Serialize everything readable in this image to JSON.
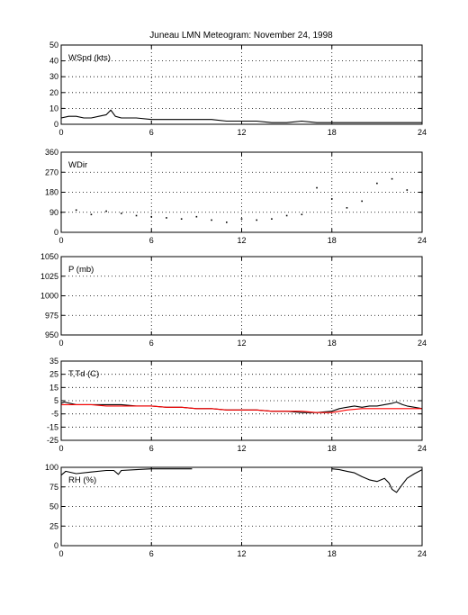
{
  "title": "Juneau LMN Meteogram:  November 24, 1998",
  "chart_data": [
    {
      "type": "line",
      "label": "WSpd (kts)",
      "xlim": [
        0,
        24
      ],
      "xticks": [
        "0",
        "6",
        "12",
        "18",
        "24"
      ],
      "ylim": [
        0,
        50
      ],
      "yticks": [
        "0",
        "10",
        "20",
        "30",
        "40",
        "50"
      ],
      "grid": true,
      "series": [
        {
          "color": "#000000",
          "style": "line",
          "x": [
            0,
            0.5,
            1,
            1.5,
            2,
            2.5,
            3,
            3.3,
            3.6,
            4,
            5,
            6,
            7,
            8,
            9,
            10,
            11,
            12,
            13,
            14,
            15,
            16,
            17,
            18,
            19,
            20,
            21,
            22,
            23,
            24
          ],
          "y": [
            4,
            5,
            5,
            4,
            4,
            5,
            6,
            9,
            5,
            4,
            4,
            3,
            3,
            3,
            3,
            3,
            2,
            2,
            2,
            1,
            1,
            2,
            1,
            1,
            1,
            1,
            1,
            1,
            1,
            1
          ]
        }
      ]
    },
    {
      "type": "scatter",
      "label": "WDir",
      "xlim": [
        0,
        24
      ],
      "xticks": [
        "0",
        "6",
        "12",
        "18",
        "24"
      ],
      "ylim": [
        0,
        360
      ],
      "yticks": [
        "0",
        "90",
        "180",
        "270",
        "360"
      ],
      "grid": true,
      "series": [
        {
          "color": "#000000",
          "style": "dots",
          "x": [
            0,
            1,
            2,
            3,
            4,
            5,
            6,
            7,
            8,
            9,
            10,
            11,
            12,
            13,
            14,
            15,
            16,
            17,
            18,
            19,
            20,
            21,
            22,
            23,
            24
          ],
          "y": [
            90,
            100,
            80,
            95,
            85,
            75,
            70,
            65,
            60,
            70,
            55,
            45,
            60,
            55,
            60,
            75,
            80,
            200,
            150,
            110,
            140,
            220,
            240,
            190,
            180
          ]
        }
      ]
    },
    {
      "type": "line",
      "label": "P (mb)",
      "xlim": [
        0,
        24
      ],
      "xticks": [
        "0",
        "6",
        "12",
        "18",
        "24"
      ],
      "ylim": [
        950,
        1050
      ],
      "yticks": [
        "950",
        "975",
        "1000",
        "1025",
        "1050"
      ],
      "grid": true,
      "series": []
    },
    {
      "type": "line",
      "label": "T,Td (C)",
      "xlim": [
        0,
        24
      ],
      "xticks": [
        "0",
        "6",
        "12",
        "18",
        "24"
      ],
      "ylim": [
        -25,
        35
      ],
      "yticks": [
        "-25",
        "-15",
        "-5",
        "5",
        "15",
        "25",
        "35"
      ],
      "grid": true,
      "series": [
        {
          "color": "#000000",
          "style": "line",
          "x": [
            0,
            0.2,
            1,
            2,
            3,
            4,
            5,
            6,
            7,
            8,
            9,
            10,
            11,
            12,
            13,
            14,
            15,
            16,
            17,
            18,
            18.5,
            19,
            19.5,
            20,
            20.5,
            21,
            21.5,
            22,
            22.3,
            22.7,
            23,
            23.5,
            24
          ],
          "y": [
            3,
            4,
            2,
            2,
            2,
            2,
            1,
            1,
            0,
            0,
            -1,
            -1,
            -2,
            -2,
            -2,
            -3,
            -3,
            -4,
            -4,
            -3,
            -1,
            0,
            1,
            0,
            1,
            1,
            2,
            3,
            4,
            2,
            1,
            0,
            -1
          ]
        },
        {
          "color": "#ff0000",
          "style": "line",
          "x": [
            0,
            1,
            2,
            3,
            4,
            5,
            6,
            7,
            8,
            9,
            10,
            11,
            12,
            13,
            14,
            15,
            16,
            17,
            18,
            19,
            20,
            21,
            22,
            23,
            24
          ],
          "y": [
            2,
            2,
            2,
            1,
            1,
            1,
            1,
            0,
            0,
            -1,
            -1,
            -2,
            -2,
            -2,
            -3,
            -3,
            -3,
            -4,
            -4,
            -2,
            -1,
            -1,
            -1,
            -1,
            -1
          ]
        }
      ]
    },
    {
      "type": "line",
      "label": "RH (%)",
      "xlim": [
        0,
        24
      ],
      "xticks": [
        "0",
        "6",
        "12",
        "18",
        "24"
      ],
      "ylim": [
        0,
        100
      ],
      "yticks": [
        "0",
        "25",
        "50",
        "75",
        "100"
      ],
      "grid": true,
      "series": [
        {
          "color": "#000000",
          "style": "line",
          "x": [
            0,
            0.3,
            1,
            2,
            3,
            3.5,
            3.8,
            4,
            5,
            6,
            7,
            8,
            8.7
          ],
          "y": [
            90,
            95,
            92,
            94,
            96,
            96,
            91,
            96,
            97,
            98,
            98,
            98,
            98
          ]
        },
        {
          "color": "#000000",
          "style": "line",
          "x": [
            18,
            18.5,
            19,
            19.5,
            20,
            20.5,
            21,
            21.5,
            21.8,
            22,
            22.3,
            22.6,
            23,
            23.5,
            24
          ],
          "y": [
            98,
            97,
            95,
            93,
            88,
            84,
            82,
            86,
            80,
            72,
            68,
            76,
            86,
            92,
            97
          ]
        }
      ]
    }
  ]
}
